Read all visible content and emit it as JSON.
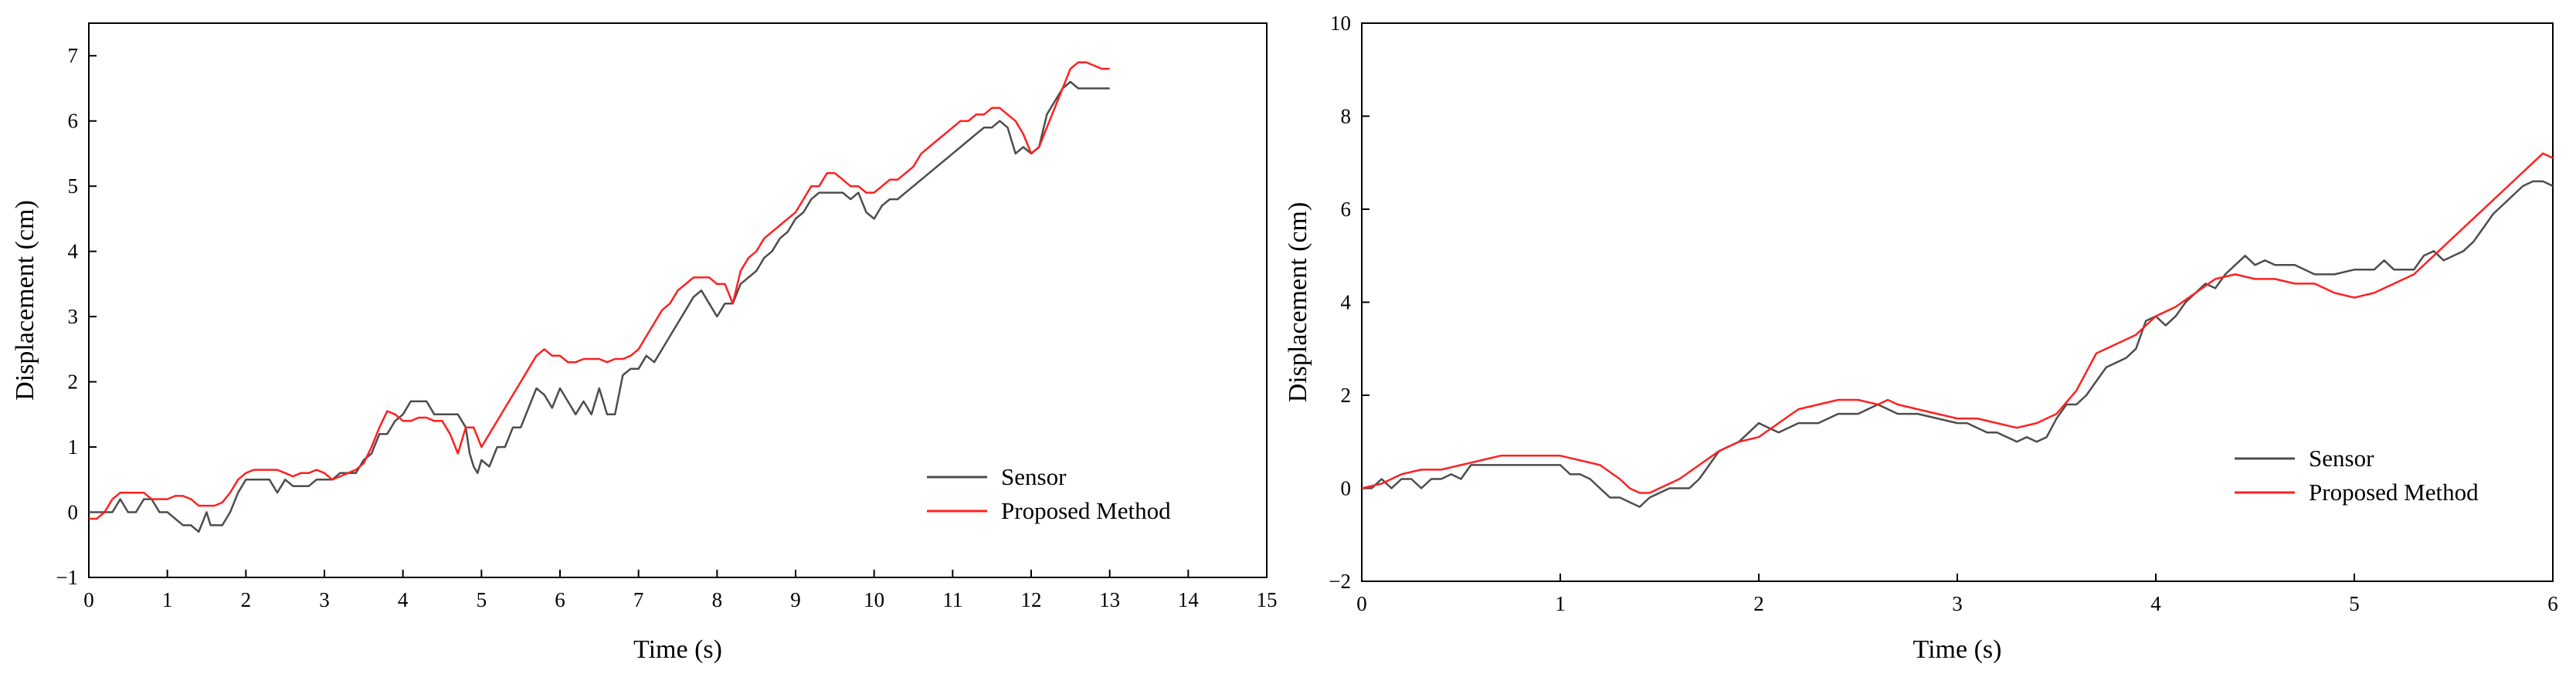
{
  "colors": {
    "sensor": "#4d4d4d",
    "proposed": "#ff2020",
    "axis": "#000000"
  },
  "chart_data": [
    {
      "type": "line",
      "title": "",
      "xlabel": "Time (s)",
      "ylabel": "Displacement (cm)",
      "xlim": [
        0,
        15
      ],
      "ylim": [
        -1,
        7.5
      ],
      "xticks": [
        0,
        1,
        2,
        3,
        4,
        5,
        6,
        7,
        8,
        9,
        10,
        11,
        12,
        13,
        14,
        15
      ],
      "yticks": [
        -1,
        0,
        1,
        2,
        3,
        4,
        5,
        6,
        7
      ],
      "legend": "bottom-right",
      "grid": false,
      "series": [
        {
          "name": "Sensor",
          "x": [
            0,
            0.3,
            0.4,
            0.5,
            0.6,
            0.7,
            0.8,
            0.9,
            1.0,
            1.2,
            1.3,
            1.4,
            1.5,
            1.55,
            1.6,
            1.7,
            1.8,
            1.9,
            2.0,
            2.1,
            2.2,
            2.3,
            2.4,
            2.5,
            2.6,
            2.7,
            2.8,
            2.9,
            3.0,
            3.1,
            3.2,
            3.3,
            3.4,
            3.5,
            3.6,
            3.7,
            3.8,
            3.9,
            4.0,
            4.1,
            4.2,
            4.3,
            4.4,
            4.5,
            4.6,
            4.7,
            4.8,
            4.85,
            4.9,
            4.95,
            5.0,
            5.1,
            5.2,
            5.3,
            5.4,
            5.5,
            5.6,
            5.7,
            5.8,
            5.9,
            6.0,
            6.1,
            6.2,
            6.3,
            6.4,
            6.5,
            6.6,
            6.7,
            6.8,
            6.9,
            7.0,
            7.1,
            7.2,
            7.3,
            7.4,
            7.5,
            7.6,
            7.7,
            7.8,
            7.9,
            8.0,
            8.1,
            8.2,
            8.3,
            8.4,
            8.5,
            8.6,
            8.7,
            8.8,
            8.9,
            9.0,
            9.1,
            9.2,
            9.3,
            9.4,
            9.5,
            9.6,
            9.7,
            9.8,
            9.9,
            10.0,
            10.1,
            10.2,
            10.3,
            10.4,
            10.5,
            10.6,
            10.7,
            10.8,
            10.9,
            11.0,
            11.1,
            11.2,
            11.3,
            11.4,
            11.5,
            11.6,
            11.7,
            11.8,
            11.9,
            12.0,
            12.1,
            12.2,
            12.3,
            12.4,
            12.5,
            12.6,
            12.7,
            12.8,
            12.9,
            13.0
          ],
          "y": [
            0,
            0,
            0.2,
            0,
            0,
            0.2,
            0.2,
            0,
            0,
            -0.2,
            -0.2,
            -0.3,
            0,
            -0.2,
            -0.2,
            -0.2,
            0,
            0.3,
            0.5,
            0.5,
            0.5,
            0.5,
            0.3,
            0.5,
            0.4,
            0.4,
            0.4,
            0.5,
            0.5,
            0.5,
            0.6,
            0.6,
            0.6,
            0.8,
            0.9,
            1.2,
            1.2,
            1.4,
            1.5,
            1.7,
            1.7,
            1.7,
            1.5,
            1.5,
            1.5,
            1.5,
            1.3,
            0.9,
            0.7,
            0.6,
            0.8,
            0.7,
            1.0,
            1.0,
            1.3,
            1.3,
            1.6,
            1.9,
            1.8,
            1.6,
            1.9,
            1.7,
            1.5,
            1.7,
            1.5,
            1.9,
            1.5,
            1.5,
            2.1,
            2.2,
            2.2,
            2.4,
            2.3,
            2.5,
            2.7,
            2.9,
            3.1,
            3.3,
            3.4,
            3.2,
            3.0,
            3.2,
            3.2,
            3.5,
            3.6,
            3.7,
            3.9,
            4.0,
            4.2,
            4.3,
            4.5,
            4.6,
            4.8,
            4.9,
            4.9,
            4.9,
            4.9,
            4.8,
            4.9,
            4.6,
            4.5,
            4.7,
            4.8,
            4.8,
            4.9,
            5.0,
            5.1,
            5.2,
            5.3,
            5.4,
            5.5,
            5.6,
            5.7,
            5.8,
            5.9,
            5.9,
            6.0,
            5.9,
            5.5,
            5.6,
            5.5,
            5.6,
            6.1,
            6.3,
            6.5,
            6.6,
            6.5,
            6.5,
            6.5,
            6.5,
            6.5
          ],
          "color": "#4d4d4d"
        },
        {
          "name": "Proposed Method",
          "x": [
            0,
            0.1,
            0.2,
            0.3,
            0.4,
            0.5,
            0.6,
            0.7,
            0.8,
            0.9,
            1.0,
            1.1,
            1.2,
            1.3,
            1.4,
            1.5,
            1.6,
            1.7,
            1.8,
            1.9,
            2.0,
            2.1,
            2.2,
            2.3,
            2.4,
            2.5,
            2.6,
            2.7,
            2.8,
            2.9,
            3.0,
            3.1,
            3.2,
            3.3,
            3.4,
            3.5,
            3.6,
            3.7,
            3.8,
            3.9,
            4.0,
            4.1,
            4.2,
            4.3,
            4.4,
            4.5,
            4.6,
            4.7,
            4.8,
            4.9,
            5.0,
            5.1,
            5.2,
            5.3,
            5.4,
            5.5,
            5.6,
            5.7,
            5.8,
            5.9,
            6.0,
            6.1,
            6.2,
            6.3,
            6.4,
            6.5,
            6.6,
            6.7,
            6.8,
            6.9,
            7.0,
            7.1,
            7.2,
            7.3,
            7.4,
            7.5,
            7.6,
            7.7,
            7.8,
            7.9,
            8.0,
            8.1,
            8.2,
            8.3,
            8.4,
            8.5,
            8.6,
            8.7,
            8.8,
            8.9,
            9.0,
            9.1,
            9.2,
            9.3,
            9.4,
            9.5,
            9.6,
            9.7,
            9.8,
            9.9,
            10.0,
            10.1,
            10.2,
            10.3,
            10.4,
            10.5,
            10.6,
            10.7,
            10.8,
            10.9,
            11.0,
            11.1,
            11.2,
            11.3,
            11.4,
            11.5,
            11.6,
            11.7,
            11.8,
            11.9,
            12.0,
            12.1,
            12.2,
            12.3,
            12.4,
            12.5,
            12.6,
            12.7,
            12.8,
            12.9,
            13.0
          ],
          "y": [
            -0.1,
            -0.1,
            0.0,
            0.2,
            0.3,
            0.3,
            0.3,
            0.3,
            0.2,
            0.2,
            0.2,
            0.25,
            0.25,
            0.2,
            0.1,
            0.1,
            0.1,
            0.15,
            0.3,
            0.5,
            0.6,
            0.65,
            0.65,
            0.65,
            0.65,
            0.6,
            0.55,
            0.6,
            0.6,
            0.65,
            0.6,
            0.5,
            0.55,
            0.6,
            0.65,
            0.75,
            1.0,
            1.3,
            1.55,
            1.5,
            1.4,
            1.4,
            1.45,
            1.45,
            1.4,
            1.4,
            1.2,
            0.9,
            1.3,
            1.3,
            1.0,
            1.2,
            1.4,
            1.6,
            1.8,
            2.0,
            2.2,
            2.4,
            2.5,
            2.4,
            2.4,
            2.3,
            2.3,
            2.35,
            2.35,
            2.35,
            2.3,
            2.35,
            2.35,
            2.4,
            2.5,
            2.7,
            2.9,
            3.1,
            3.2,
            3.4,
            3.5,
            3.6,
            3.6,
            3.6,
            3.5,
            3.5,
            3.2,
            3.7,
            3.9,
            4.0,
            4.2,
            4.3,
            4.4,
            4.5,
            4.6,
            4.8,
            5.0,
            5.0,
            5.2,
            5.2,
            5.1,
            5.0,
            5.0,
            4.9,
            4.9,
            5.0,
            5.1,
            5.1,
            5.2,
            5.3,
            5.5,
            5.6,
            5.7,
            5.8,
            5.9,
            6.0,
            6.0,
            6.1,
            6.1,
            6.2,
            6.2,
            6.1,
            6.0,
            5.8,
            5.5,
            5.6,
            5.9,
            6.2,
            6.5,
            6.8,
            6.9,
            6.9,
            6.85,
            6.8,
            6.8
          ],
          "color": "#ff2020"
        }
      ]
    },
    {
      "type": "line",
      "title": "",
      "xlabel": "Time (s)",
      "ylabel": "Displacement (cm)",
      "xlim": [
        0,
        6
      ],
      "ylim": [
        -2,
        10
      ],
      "xticks": [
        0,
        1,
        2,
        3,
        4,
        5,
        6
      ],
      "yticks": [
        -2,
        0,
        2,
        4,
        6,
        8,
        10
      ],
      "legend": "bottom-right",
      "grid": false,
      "series": [
        {
          "name": "Sensor",
          "x": [
            0,
            0.05,
            0.1,
            0.15,
            0.2,
            0.25,
            0.3,
            0.35,
            0.4,
            0.45,
            0.5,
            0.55,
            0.6,
            0.7,
            0.8,
            0.9,
            1.0,
            1.05,
            1.1,
            1.15,
            1.2,
            1.25,
            1.3,
            1.35,
            1.4,
            1.45,
            1.5,
            1.55,
            1.6,
            1.65,
            1.7,
            1.75,
            1.8,
            1.85,
            1.9,
            1.95,
            2.0,
            2.05,
            2.1,
            2.2,
            2.3,
            2.4,
            2.5,
            2.6,
            2.7,
            2.8,
            2.9,
            3.0,
            3.05,
            3.1,
            3.15,
            3.2,
            3.25,
            3.3,
            3.35,
            3.4,
            3.45,
            3.5,
            3.55,
            3.6,
            3.65,
            3.7,
            3.75,
            3.8,
            3.85,
            3.9,
            3.95,
            4.0,
            4.05,
            4.1,
            4.15,
            4.2,
            4.25,
            4.3,
            4.35,
            4.4,
            4.45,
            4.5,
            4.55,
            4.6,
            4.7,
            4.8,
            4.9,
            5.0,
            5.1,
            5.15,
            5.2,
            5.25,
            5.3,
            5.35,
            5.4,
            5.45,
            5.5,
            5.55,
            5.6,
            5.65,
            5.7,
            5.75,
            5.8,
            5.85,
            5.9,
            5.95,
            6.0
          ],
          "y": [
            0,
            0,
            0.2,
            0,
            0.2,
            0.2,
            0,
            0.2,
            0.2,
            0.3,
            0.2,
            0.5,
            0.5,
            0.5,
            0.5,
            0.5,
            0.5,
            0.3,
            0.3,
            0.2,
            0,
            -0.2,
            -0.2,
            -0.3,
            -0.4,
            -0.2,
            -0.1,
            0,
            0,
            0,
            0.2,
            0.5,
            0.8,
            0.9,
            1.0,
            1.2,
            1.4,
            1.3,
            1.2,
            1.4,
            1.4,
            1.6,
            1.6,
            1.8,
            1.6,
            1.6,
            1.5,
            1.4,
            1.4,
            1.3,
            1.2,
            1.2,
            1.1,
            1.0,
            1.1,
            1.0,
            1.1,
            1.5,
            1.8,
            1.8,
            2.0,
            2.3,
            2.6,
            2.7,
            2.8,
            3.0,
            3.6,
            3.7,
            3.5,
            3.7,
            4.0,
            4.2,
            4.4,
            4.3,
            4.6,
            4.8,
            5.0,
            4.8,
            4.9,
            4.8,
            4.8,
            4.6,
            4.6,
            4.7,
            4.7,
            4.9,
            4.7,
            4.7,
            4.7,
            5.0,
            5.1,
            4.9,
            5.0,
            5.1,
            5.3,
            5.6,
            5.9,
            6.1,
            6.3,
            6.5,
            6.6,
            6.6,
            6.5
          ],
          "color": "#4d4d4d"
        },
        {
          "name": "Proposed Method",
          "x": [
            0,
            0.1,
            0.2,
            0.3,
            0.4,
            0.5,
            0.6,
            0.7,
            0.8,
            0.9,
            1.0,
            1.1,
            1.2,
            1.3,
            1.35,
            1.4,
            1.45,
            1.5,
            1.6,
            1.7,
            1.8,
            1.9,
            2.0,
            2.1,
            2.2,
            2.3,
            2.4,
            2.5,
            2.6,
            2.65,
            2.7,
            2.8,
            2.9,
            3.0,
            3.1,
            3.2,
            3.3,
            3.4,
            3.5,
            3.6,
            3.7,
            3.8,
            3.9,
            4.0,
            4.1,
            4.2,
            4.3,
            4.4,
            4.5,
            4.6,
            4.7,
            4.8,
            4.9,
            5.0,
            5.1,
            5.2,
            5.3,
            5.4,
            5.5,
            5.6,
            5.7,
            5.8,
            5.9,
            5.95,
            6.0
          ],
          "y": [
            0,
            0.1,
            0.3,
            0.4,
            0.4,
            0.5,
            0.6,
            0.7,
            0.7,
            0.7,
            0.7,
            0.6,
            0.5,
            0.2,
            0,
            -0.1,
            -0.1,
            0,
            0.2,
            0.5,
            0.8,
            1.0,
            1.1,
            1.4,
            1.7,
            1.8,
            1.9,
            1.9,
            1.8,
            1.9,
            1.8,
            1.7,
            1.6,
            1.5,
            1.5,
            1.4,
            1.3,
            1.4,
            1.6,
            2.1,
            2.9,
            3.1,
            3.3,
            3.7,
            3.9,
            4.2,
            4.5,
            4.6,
            4.5,
            4.5,
            4.4,
            4.4,
            4.2,
            4.1,
            4.2,
            4.4,
            4.6,
            5.0,
            5.4,
            5.8,
            6.2,
            6.6,
            7.0,
            7.2,
            7.1
          ],
          "color": "#ff2020"
        }
      ]
    }
  ]
}
